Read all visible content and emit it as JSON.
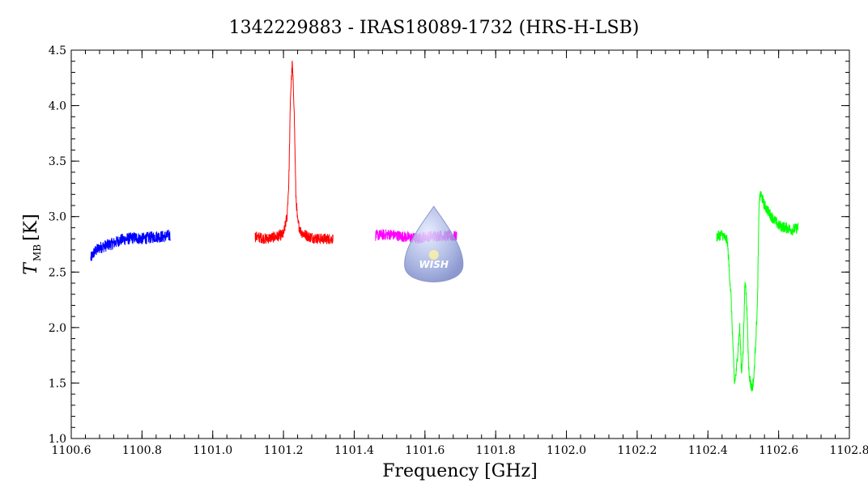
{
  "chart_data": {
    "type": "line",
    "title": "1342229883 - IRAS18089-1732 (HRS-H-LSB)",
    "xlabel": "Frequency [GHz]",
    "ylabel_main": "T",
    "ylabel_sub": "MB",
    "ylabel_unit": "[K]",
    "xlim": [
      1100.6,
      1102.8
    ],
    "ylim": [
      1.0,
      4.5
    ],
    "x_major_ticks": [
      1100.6,
      1100.8,
      1101.0,
      1101.2,
      1101.4,
      1101.6,
      1101.8,
      1102.0,
      1102.2,
      1102.4,
      1102.6,
      1102.8
    ],
    "x_tick_labels": [
      "1100.6",
      "1100.8",
      "1101.0",
      "1101.2",
      "1101.4",
      "1101.6",
      "1101.8",
      "1102.0",
      "1102.2",
      "1102.4",
      "1102.6",
      "1102.8"
    ],
    "y_major_ticks": [
      1.0,
      1.5,
      2.0,
      2.5,
      3.0,
      3.5,
      4.0,
      4.5
    ],
    "y_tick_labels": [
      "1.0",
      "1.5",
      "2.0",
      "2.5",
      "3.0",
      "3.5",
      "4.0",
      "4.5"
    ],
    "grid": false,
    "legend": "none",
    "series": [
      {
        "color": "#0000ff",
        "x": [
          1100.655,
          1100.665,
          1100.68,
          1100.7,
          1100.72,
          1100.74,
          1100.76,
          1100.78,
          1100.8,
          1100.82,
          1100.84,
          1100.86,
          1100.88
        ],
        "y": [
          2.62,
          2.68,
          2.72,
          2.74,
          2.76,
          2.79,
          2.8,
          2.81,
          2.8,
          2.81,
          2.82,
          2.82,
          2.83
        ],
        "noise": 0.055
      },
      {
        "color": "#ff0000",
        "x": [
          1101.12,
          1101.15,
          1101.18,
          1101.2,
          1101.21,
          1101.215,
          1101.22,
          1101.225,
          1101.23,
          1101.235,
          1101.24,
          1101.25,
          1101.27,
          1101.3,
          1101.34
        ],
        "y": [
          2.82,
          2.8,
          2.82,
          2.84,
          3.0,
          3.3,
          4.1,
          4.38,
          4.0,
          3.2,
          2.95,
          2.86,
          2.82,
          2.8,
          2.8
        ],
        "noise": 0.05
      },
      {
        "color": "#ff00ff",
        "x": [
          1101.46,
          1101.5,
          1101.54,
          1101.58,
          1101.6,
          1101.64,
          1101.69
        ],
        "y": [
          2.83,
          2.84,
          2.82,
          2.8,
          2.82,
          2.83,
          2.82
        ],
        "noise": 0.05
      },
      {
        "color": "#00ff00",
        "x": [
          1102.425,
          1102.44,
          1102.455,
          1102.465,
          1102.475,
          1102.48,
          1102.49,
          1102.495,
          1102.5,
          1102.505,
          1102.51,
          1102.515,
          1102.52,
          1102.525,
          1102.53,
          1102.54,
          1102.545,
          1102.55,
          1102.56,
          1102.58,
          1102.6,
          1102.62,
          1102.64,
          1102.655
        ],
        "y": [
          2.82,
          2.84,
          2.78,
          2.3,
          1.5,
          1.6,
          2.0,
          1.6,
          1.8,
          2.45,
          2.2,
          1.65,
          1.5,
          1.45,
          1.55,
          2.2,
          3.15,
          3.2,
          3.1,
          3.0,
          2.92,
          2.9,
          2.88,
          2.9
        ],
        "noise": 0.05
      }
    ]
  },
  "logo": {
    "text": "WISH",
    "x_center": 1101.625,
    "y_center": 2.67
  }
}
